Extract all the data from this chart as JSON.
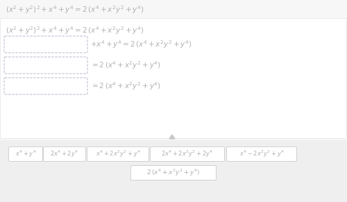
{
  "bg_color": "#f7f7f7",
  "white_box_color": "#ffffff",
  "text_color": "#b0b0b0",
  "box_border_color": "#d0d0d0",
  "dashed_border_color": "#b8b8cc",
  "bottom_bg_color": "#efefef",
  "arrow_color": "#c8c8c8",
  "box_texts": [
    "$x^4 + y^4$",
    "$2x^4 + 2y^4$",
    "$x^4 + 2x^2y^2 + y^4$",
    "$2x^4 + 2x^2y^2 + 2y^4$",
    "$x^4 - 2x^2y^2 + y^4$"
  ],
  "bottom_box_text": "$2\\,(x^4 + x^2y^2 + y^4)$",
  "eq_top": "$(x^2 + y^2)^2 + x^4 + y^4 = 2\\,(x^4 + x^2y^2 + y^4)$",
  "eq1": "$(x^2 + y^2)^2 + x^4 + y^4 = 2\\,(x^4 + x^2y^2 + y^4)$",
  "eq2": "$+x^4 + y^4 = 2\\,(x^4 + x^2y^2 + y^4)$",
  "eq3": "$= 2\\,(x^4 + x^2y^2 + y^4)$",
  "eq4": "$= 2\\,(x^4 + x^2y^2 + y^4)$"
}
